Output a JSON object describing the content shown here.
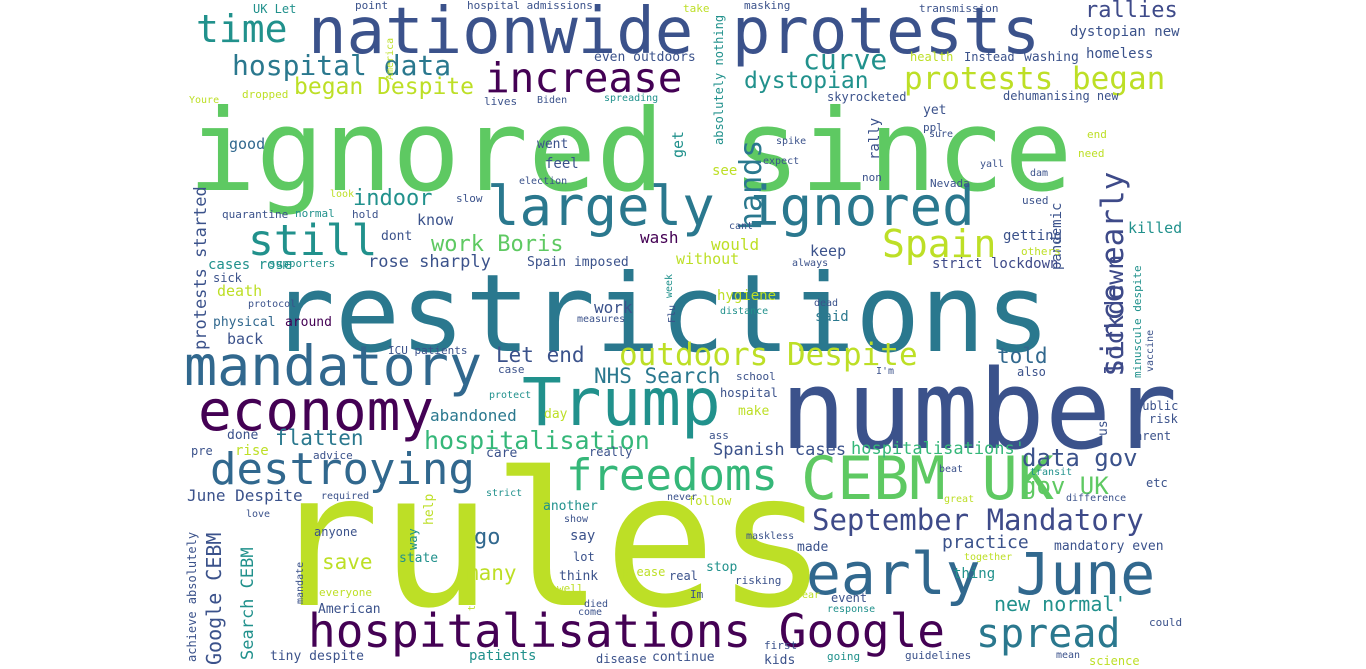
{
  "words": [
    {
      "text": "ignored since",
      "color": "#5ec962"
    },
    {
      "text": "restrictions",
      "color": "#2a788e"
    },
    {
      "text": "rules",
      "color": "#bddf26"
    },
    {
      "text": "number",
      "color": "#3b528b"
    },
    {
      "text": "nationwide protests",
      "color": "#3b528b"
    },
    {
      "text": "largely ignored",
      "color": "#2a788e"
    },
    {
      "text": "mandatory",
      "color": "#31688e"
    },
    {
      "text": "economy",
      "color": "#440154"
    },
    {
      "text": "CEBM UK",
      "color": "#5ec962"
    },
    {
      "text": "Trump",
      "color": "#21918c"
    },
    {
      "text": "early June",
      "color": "#31688e"
    },
    {
      "text": "hospitalisations Google",
      "color": "#440154"
    },
    {
      "text": "destroying",
      "color": "#31688e"
    },
    {
      "text": "freedoms",
      "color": "#35b779"
    },
    {
      "text": "increase",
      "color": "#440154"
    },
    {
      "text": "still",
      "color": "#21918c"
    },
    {
      "text": "time",
      "color": "#21918c"
    },
    {
      "text": "Spain",
      "color": "#bddf26"
    },
    {
      "text": "spread",
      "color": "#2a788e"
    },
    {
      "text": "outdoors Despite",
      "color": "#bddf26"
    },
    {
      "text": "protests began",
      "color": "#bddf26"
    },
    {
      "text": "since early",
      "color": "#3e4a89"
    },
    {
      "text": "September Mandatory",
      "color": "#3e4a89"
    },
    {
      "text": "hospital data",
      "color": "#2a788e"
    },
    {
      "text": "hands",
      "color": "#2a788e"
    },
    {
      "text": "curve",
      "color": "#21918c"
    },
    {
      "text": "dystopian",
      "color": "#21918c"
    },
    {
      "text": "began Despite",
      "color": "#bddf26"
    },
    {
      "text": "hospitalisation",
      "color": "#35b779"
    },
    {
      "text": "lockdown",
      "color": "#3e4a89"
    },
    {
      "text": "data gov",
      "color": "#3b528b"
    },
    {
      "text": "gov UK",
      "color": "#5ec962"
    },
    {
      "text": "rallies",
      "color": "#3e4a89"
    },
    {
      "text": "indoor",
      "color": "#21918c"
    },
    {
      "text": "work Boris",
      "color": "#5ec962"
    },
    {
      "text": "Let end",
      "color": "#3b528b"
    },
    {
      "text": "NHS Search",
      "color": "#2a788e"
    },
    {
      "text": "told",
      "color": "#31688e"
    },
    {
      "text": "flatten",
      "color": "#2a788e"
    },
    {
      "text": "Google CEBM",
      "color": "#3b528b"
    },
    {
      "text": "Search CEBM",
      "color": "#21918c"
    },
    {
      "text": "save",
      "color": "#bddf26"
    },
    {
      "text": "many",
      "color": "#bddf26"
    },
    {
      "text": "go",
      "color": "#31688e"
    },
    {
      "text": "new normal'",
      "color": "#21918c"
    },
    {
      "text": "June Despite",
      "color": "#3b528b"
    },
    {
      "text": "hospitalisations'",
      "color": "#35b779"
    },
    {
      "text": "Spanish cases",
      "color": "#3b528b"
    },
    {
      "text": "practice",
      "color": "#3b528b"
    },
    {
      "text": "protests started",
      "color": "#3b528b"
    },
    {
      "text": "rose sharply",
      "color": "#3b528b"
    },
    {
      "text": "abandoned",
      "color": "#2a788e"
    },
    {
      "text": "cases rose",
      "color": "#21918c"
    },
    {
      "text": "death",
      "color": "#bddf26"
    },
    {
      "text": "wash",
      "color": "#440154"
    },
    {
      "text": "would",
      "color": "#bddf26"
    },
    {
      "text": "without",
      "color": "#bddf26"
    },
    {
      "text": "keep",
      "color": "#3b528b"
    },
    {
      "text": "getting",
      "color": "#3b528b"
    },
    {
      "text": "pandemic",
      "color": "#3b528b"
    },
    {
      "text": "killed",
      "color": "#21918c"
    },
    {
      "text": "strict lockdown",
      "color": "#3e4a89"
    },
    {
      "text": "hygiene",
      "color": "#bddf26"
    },
    {
      "text": "said",
      "color": "#2a788e"
    },
    {
      "text": "work",
      "color": "#3b528b"
    },
    {
      "text": "around",
      "color": "#440154"
    },
    {
      "text": "physical",
      "color": "#31688e"
    },
    {
      "text": "back",
      "color": "#3b528b"
    },
    {
      "text": "know",
      "color": "#3b528b"
    },
    {
      "text": "dont",
      "color": "#3b528b"
    },
    {
      "text": "Spain imposed",
      "color": "#3b528b"
    },
    {
      "text": "homeless",
      "color": "#3b528b"
    },
    {
      "text": "dystopian new",
      "color": "#3b528b"
    },
    {
      "text": "dehumanising new",
      "color": "#3b528b"
    },
    {
      "text": "skyrocketed",
      "color": "#3b528b"
    },
    {
      "text": "even outdoors",
      "color": "#3b528b"
    },
    {
      "text": "washing",
      "color": "#3b528b"
    },
    {
      "text": "Instead",
      "color": "#3b528b"
    },
    {
      "text": "health",
      "color": "#bddf26"
    },
    {
      "text": "UK Let",
      "color": "#21918c"
    },
    {
      "text": "point",
      "color": "#3b528b"
    },
    {
      "text": "hospital admissions",
      "color": "#3b528b"
    },
    {
      "text": "take",
      "color": "#bddf26"
    },
    {
      "text": "masking",
      "color": "#3b528b"
    },
    {
      "text": "transmission",
      "color": "#3b528b"
    },
    {
      "text": "America",
      "color": "#bddf26"
    },
    {
      "text": "absolutely nothing",
      "color": "#21918c"
    },
    {
      "text": "Youre",
      "color": "#bddf26"
    },
    {
      "text": "dropped",
      "color": "#bddf26"
    },
    {
      "text": "lives",
      "color": "#3b528b"
    },
    {
      "text": "Biden",
      "color": "#3b528b"
    },
    {
      "text": "spreading",
      "color": "#21918c"
    },
    {
      "text": "good",
      "color": "#31688e"
    },
    {
      "text": "went",
      "color": "#3b528b"
    },
    {
      "text": "get",
      "color": "#21918c"
    },
    {
      "text": "rally",
      "color": "#3b528b"
    },
    {
      "text": "feel",
      "color": "#3b528b"
    },
    {
      "text": "see",
      "color": "#bddf26"
    },
    {
      "text": "election",
      "color": "#3b528b"
    },
    {
      "text": "spike",
      "color": "#3b528b"
    },
    {
      "text": "expect",
      "color": "#3b528b"
    },
    {
      "text": "non",
      "color": "#3b528b"
    },
    {
      "text": "Nevada",
      "color": "#3b528b"
    },
    {
      "text": "yet",
      "color": "#3b528b"
    },
    {
      "text": "ppl",
      "color": "#3b528b"
    },
    {
      "text": "sure",
      "color": "#3b528b"
    },
    {
      "text": "yall",
      "color": "#3b528b"
    },
    {
      "text": "dam",
      "color": "#3b528b"
    },
    {
      "text": "end",
      "color": "#bddf26"
    },
    {
      "text": "need",
      "color": "#bddf26"
    },
    {
      "text": "used",
      "color": "#3b528b"
    },
    {
      "text": "others",
      "color": "#bddf26"
    },
    {
      "text": "look",
      "color": "#bddf26"
    },
    {
      "text": "slow",
      "color": "#3b528b"
    },
    {
      "text": "quarantine",
      "color": "#3b528b"
    },
    {
      "text": "normal",
      "color": "#21918c"
    },
    {
      "text": "hold",
      "color": "#3b528b"
    },
    {
      "text": "cant",
      "color": "#3b528b"
    },
    {
      "text": "week",
      "color": "#21918c"
    },
    {
      "text": "Flu",
      "color": "#3b528b"
    },
    {
      "text": "always",
      "color": "#3b528b"
    },
    {
      "text": "supporters",
      "color": "#21918c"
    },
    {
      "text": "sick",
      "color": "#3b528b"
    },
    {
      "text": "protocol",
      "color": "#3b528b"
    },
    {
      "text": "measures",
      "color": "#3b528b"
    },
    {
      "text": "distance",
      "color": "#21918c"
    },
    {
      "text": "dead",
      "color": "#3b528b"
    },
    {
      "text": "ICU patients",
      "color": "#3b528b"
    },
    {
      "text": "case",
      "color": "#3b528b"
    },
    {
      "text": "protect",
      "color": "#21918c"
    },
    {
      "text": "day",
      "color": "#bddf26"
    },
    {
      "text": "hospital",
      "color": "#3b528b"
    },
    {
      "text": "school",
      "color": "#3b528b"
    },
    {
      "text": "I'm",
      "color": "#3b528b"
    },
    {
      "text": "also",
      "color": "#3b528b"
    },
    {
      "text": "minuscule despite",
      "color": "#21918c"
    },
    {
      "text": "vaccine",
      "color": "#3b528b"
    },
    {
      "text": "make",
      "color": "#bddf26"
    },
    {
      "text": "public",
      "color": "#3b528b"
    },
    {
      "text": "risk",
      "color": "#3b528b"
    },
    {
      "text": "arent",
      "color": "#3b528b"
    },
    {
      "text": "us",
      "color": "#3b528b"
    },
    {
      "text": "done",
      "color": "#3b528b"
    },
    {
      "text": "ass",
      "color": "#3b528b"
    },
    {
      "text": "pre",
      "color": "#3b528b"
    },
    {
      "text": "rise",
      "color": "#bddf26"
    },
    {
      "text": "advice",
      "color": "#3b528b"
    },
    {
      "text": "care",
      "color": "#3b528b"
    },
    {
      "text": "really",
      "color": "#3b528b"
    },
    {
      "text": "beat",
      "color": "#3b528b"
    },
    {
      "text": "transit",
      "color": "#21918c"
    },
    {
      "text": "etc",
      "color": "#3b528b"
    },
    {
      "text": "difference",
      "color": "#3b528b"
    },
    {
      "text": "required",
      "color": "#3b528b"
    },
    {
      "text": "strict",
      "color": "#21918c"
    },
    {
      "text": "follow",
      "color": "#bddf26"
    },
    {
      "text": "great",
      "color": "#bddf26"
    },
    {
      "text": "love",
      "color": "#3b528b"
    },
    {
      "text": "another",
      "color": "#21918c"
    },
    {
      "text": "help",
      "color": "#bddf26"
    },
    {
      "text": "never",
      "color": "#3b528b"
    },
    {
      "text": "show",
      "color": "#3b528b"
    },
    {
      "text": "say",
      "color": "#3b528b"
    },
    {
      "text": "achieve absolutely",
      "color": "#3b528b"
    },
    {
      "text": "anyone",
      "color": "#3b528b"
    },
    {
      "text": "way",
      "color": "#21918c"
    },
    {
      "text": "maskless",
      "color": "#3b528b"
    },
    {
      "text": "made",
      "color": "#3b528b"
    },
    {
      "text": "mandatory even",
      "color": "#3b528b"
    },
    {
      "text": "state",
      "color": "#21918c"
    },
    {
      "text": "lot",
      "color": "#3b528b"
    },
    {
      "text": "think",
      "color": "#3b528b"
    },
    {
      "text": "stop",
      "color": "#21918c"
    },
    {
      "text": "together",
      "color": "#bddf26"
    },
    {
      "text": "thing",
      "color": "#21918c"
    },
    {
      "text": "mandate",
      "color": "#3b528b"
    },
    {
      "text": "everyone",
      "color": "#bddf26"
    },
    {
      "text": "test",
      "color": "#bddf26"
    },
    {
      "text": "well",
      "color": "#bddf26"
    },
    {
      "text": "please",
      "color": "#bddf26"
    },
    {
      "text": "risking",
      "color": "#3b528b"
    },
    {
      "text": "real",
      "color": "#3b528b"
    },
    {
      "text": "Im",
      "color": "#3b528b"
    },
    {
      "text": "year",
      "color": "#bddf26"
    },
    {
      "text": "event",
      "color": "#3b528b"
    },
    {
      "text": "response",
      "color": "#21918c"
    },
    {
      "text": "could",
      "color": "#3b528b"
    },
    {
      "text": "American",
      "color": "#3b528b"
    },
    {
      "text": "died",
      "color": "#3b528b"
    },
    {
      "text": "come",
      "color": "#3b528b"
    },
    {
      "text": "first",
      "color": "#3b528b"
    },
    {
      "text": "tiny despite",
      "color": "#3b528b"
    },
    {
      "text": "patients",
      "color": "#21918c"
    },
    {
      "text": "disease",
      "color": "#3b528b"
    },
    {
      "text": "continue",
      "color": "#3b528b"
    },
    {
      "text": "kids",
      "color": "#3b528b"
    },
    {
      "text": "going",
      "color": "#21918c"
    },
    {
      "text": "guidelines",
      "color": "#3b528b"
    },
    {
      "text": "mean",
      "color": "#3b528b"
    },
    {
      "text": "science",
      "color": "#bddf26"
    }
  ]
}
